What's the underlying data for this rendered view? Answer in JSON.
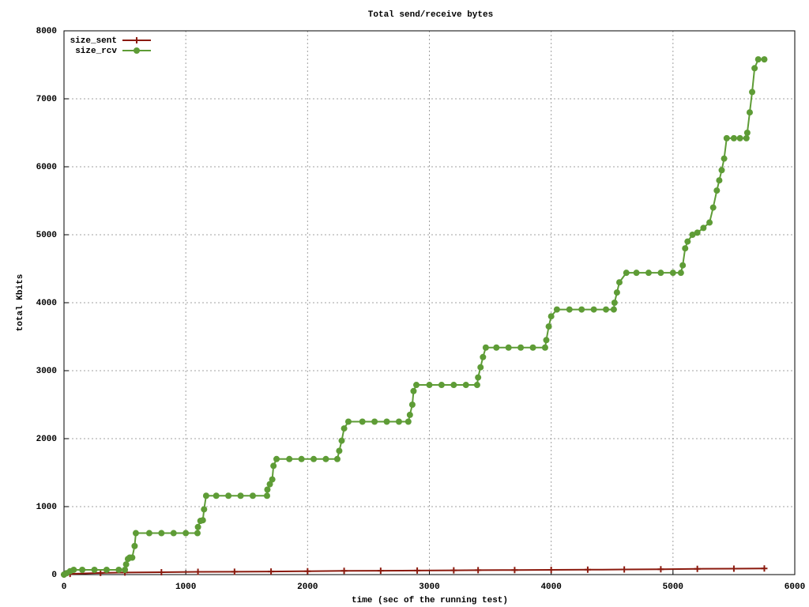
{
  "chart_data": {
    "type": "line",
    "title": "Total send/receive bytes",
    "x_label": "time (sec of the running test)",
    "y_label": "total Kbits",
    "xlim": [
      0,
      6000
    ],
    "xticks": [
      0,
      1000,
      2000,
      3000,
      4000,
      5000,
      6000
    ],
    "ylim": [
      0,
      8000
    ],
    "yticks": [
      0,
      1000,
      2000,
      3000,
      4000,
      5000,
      6000,
      7000,
      8000
    ],
    "grid": true,
    "legend_position": "top-left",
    "series": [
      {
        "name": "size_sent",
        "color": "#8b1a0e",
        "marker": "plus",
        "x": [
          0,
          50,
          300,
          500,
          800,
          1100,
          1400,
          1700,
          2000,
          2300,
          2600,
          2900,
          3200,
          3400,
          3700,
          4000,
          4300,
          4600,
          4900,
          5200,
          5500,
          5750
        ],
        "values": [
          0,
          10,
          25,
          30,
          35,
          40,
          42,
          45,
          50,
          55,
          57,
          60,
          62,
          65,
          67,
          70,
          72,
          75,
          78,
          85,
          87,
          90
        ]
      },
      {
        "name": "size_rcv",
        "color": "#5e9c36",
        "marker": "circle",
        "x": [
          0,
          20,
          50,
          80,
          150,
          250,
          350,
          450,
          500,
          510,
          525,
          540,
          560,
          580,
          590,
          700,
          800,
          900,
          1000,
          1096,
          1100,
          1120,
          1140,
          1150,
          1167,
          1250,
          1350,
          1450,
          1550,
          1667,
          1670,
          1690,
          1710,
          1720,
          1745,
          1850,
          1950,
          2050,
          2150,
          2244,
          2260,
          2280,
          2300,
          2335,
          2450,
          2550,
          2650,
          2750,
          2827,
          2840,
          2860,
          2870,
          2893,
          3000,
          3100,
          3200,
          3300,
          3392,
          3400,
          3420,
          3440,
          3463,
          3550,
          3650,
          3750,
          3850,
          3950,
          3960,
          3980,
          4000,
          4047,
          4150,
          4250,
          4350,
          4450,
          4514,
          4520,
          4540,
          4560,
          4617,
          4700,
          4800,
          4900,
          5000,
          5065,
          5080,
          5100,
          5120,
          5160,
          5200,
          5250,
          5300,
          5330,
          5360,
          5380,
          5400,
          5420,
          5441,
          5500,
          5550,
          5603,
          5610,
          5630,
          5650,
          5670,
          5700,
          5750
        ],
        "values": [
          0,
          20,
          50,
          70,
          70,
          70,
          70,
          70,
          70,
          150,
          230,
          250,
          250,
          420,
          610,
          610,
          610,
          610,
          610,
          610,
          700,
          790,
          800,
          960,
          1160,
          1160,
          1160,
          1160,
          1160,
          1160,
          1250,
          1330,
          1400,
          1600,
          1700,
          1700,
          1700,
          1700,
          1700,
          1700,
          1820,
          1970,
          2150,
          2250,
          2250,
          2250,
          2250,
          2250,
          2250,
          2350,
          2500,
          2700,
          2790,
          2790,
          2790,
          2790,
          2790,
          2790,
          2900,
          3050,
          3200,
          3340,
          3340,
          3340,
          3340,
          3340,
          3340,
          3450,
          3650,
          3800,
          3900,
          3900,
          3900,
          3900,
          3900,
          3900,
          4000,
          4150,
          4300,
          4440,
          4440,
          4440,
          4440,
          4440,
          4440,
          4550,
          4800,
          4900,
          5000,
          5030,
          5100,
          5180,
          5400,
          5650,
          5800,
          5950,
          6120,
          6420,
          6420,
          6420,
          6420,
          6500,
          6800,
          7100,
          7450,
          7580,
          7580
        ]
      }
    ]
  }
}
